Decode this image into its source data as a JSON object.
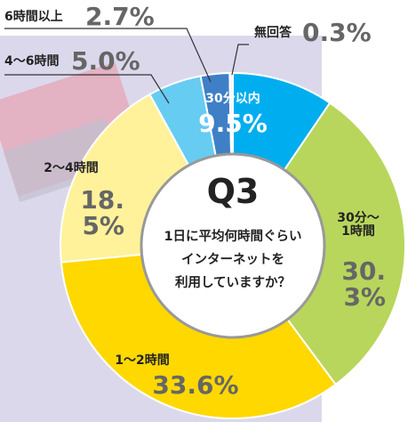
{
  "chart_data": {
    "type": "donut",
    "title": "Q3",
    "question": [
      "1日に平均何時間ぐらい",
      "インターネットを",
      "利用していますか？"
    ],
    "categories": [
      "30分以内",
      "30分～1時間",
      "1～2時間",
      "2～4時間",
      "4～6時間",
      "6時間以上",
      "無回答"
    ],
    "values": [
      9.5,
      30.3,
      33.6,
      18.5,
      5.0,
      2.7,
      0.3
    ],
    "value_labels": [
      "9.5%",
      "30.3%",
      "33.6%",
      "18.5%",
      "5.0%",
      "2.7%",
      "0.3%"
    ],
    "colors": [
      "#00aeef",
      "#b8d65c",
      "#ffd800",
      "#fff29a",
      "#66ccf2",
      "#3f7fc6",
      "#f4f4f4"
    ]
  }
}
